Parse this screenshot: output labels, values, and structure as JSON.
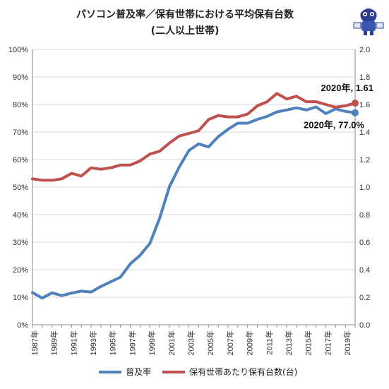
{
  "chart_data": {
    "type": "line",
    "title_line1": "パソコン普及率／保有世帯における平均保有台数",
    "title_line2": "(二人以上世帯)",
    "x": [
      1987,
      1988,
      1989,
      1990,
      1991,
      1992,
      1993,
      1994,
      1995,
      1996,
      1997,
      1998,
      1999,
      2000,
      2001,
      2002,
      2003,
      2004,
      2005,
      2006,
      2007,
      2008,
      2009,
      2010,
      2011,
      2012,
      2013,
      2014,
      2015,
      2016,
      2017,
      2018,
      2019,
      2020
    ],
    "x_tick_labels": [
      "1987年",
      "1989年",
      "1991年",
      "1993年",
      "1995年",
      "1997年",
      "1999年",
      "2001年",
      "2003年",
      "2005年",
      "2007年",
      "2009年",
      "2011年",
      "2013年",
      "2015年",
      "2017年",
      "2019年"
    ],
    "xlim": [
      1987,
      2020
    ],
    "series": [
      {
        "name": "普及率",
        "axis": "left",
        "color": "#4f81bd",
        "values": [
          11.7,
          9.7,
          11.6,
          10.6,
          11.5,
          12.2,
          11.9,
          13.9,
          15.6,
          17.3,
          22.1,
          25.2,
          29.5,
          38.6,
          50.1,
          57.2,
          63.3,
          65.7,
          64.6,
          68.3,
          71.0,
          73.2,
          73.2,
          74.6,
          75.7,
          77.3,
          78.0,
          78.8,
          78.0,
          79.1,
          76.7,
          78.4,
          77.5,
          77.0
        ]
      },
      {
        "name": "保有世帯あたり保有台数(台)",
        "axis": "right",
        "color": "#c0504d",
        "values": [
          1.06,
          1.05,
          1.05,
          1.06,
          1.1,
          1.08,
          1.14,
          1.13,
          1.14,
          1.16,
          1.16,
          1.19,
          1.24,
          1.26,
          1.32,
          1.37,
          1.39,
          1.41,
          1.49,
          1.52,
          1.51,
          1.51,
          1.53,
          1.59,
          1.62,
          1.68,
          1.64,
          1.66,
          1.62,
          1.62,
          1.6,
          1.58,
          1.59,
          1.61
        ]
      }
    ],
    "y_left": {
      "min": 0,
      "max": 100,
      "ticks": [
        "0%",
        "10%",
        "20%",
        "30%",
        "40%",
        "50%",
        "60%",
        "70%",
        "80%",
        "90%",
        "100%"
      ]
    },
    "y_right": {
      "min": 0,
      "max": 2.0,
      "ticks": [
        "0.0",
        "0.2",
        "0.4",
        "0.6",
        "0.8",
        "1.0",
        "1.2",
        "1.4",
        "1.6",
        "1.8",
        "2.0"
      ]
    },
    "annotations": [
      "2020年, 1.61",
      "2020年, 77.0%"
    ],
    "grid": "horizontal",
    "legend_position": "bottom",
    "mascot_icon": "mascot-icon"
  }
}
